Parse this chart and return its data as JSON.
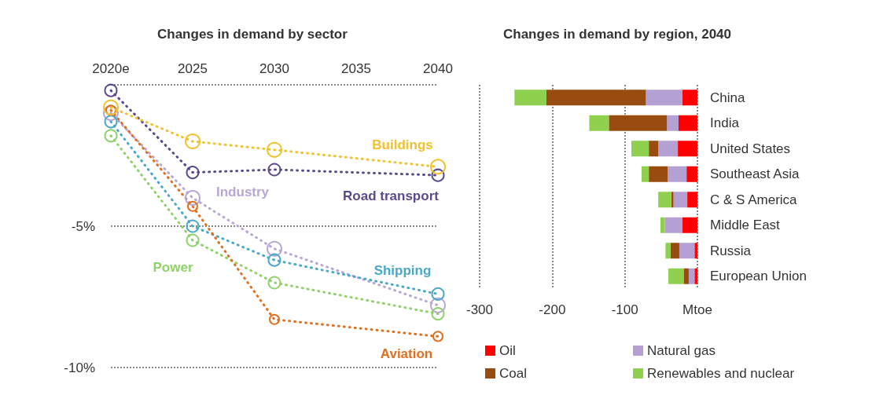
{
  "chart_data": [
    {
      "type": "line",
      "title": "Changes in demand by sector",
      "x": [
        2020,
        2025,
        2030,
        2040
      ],
      "xlim": [
        2020,
        2040
      ],
      "xticks": [
        {
          "value": 2020,
          "label": "2020e"
        },
        2025,
        2030,
        2035,
        2040
      ],
      "ylim": [
        -10,
        0
      ],
      "yticks": [
        {
          "value": 0,
          "label": null
        },
        {
          "value": -5,
          "label": "-5%"
        },
        {
          "value": -10,
          "label": "-10%"
        }
      ],
      "grid": "y",
      "legend": false,
      "marker": "circle",
      "line_style": "dotted",
      "series": [
        {
          "name": "Buildings",
          "color": "#f2c12e",
          "values": [
            -0.8,
            -2.0,
            -2.3,
            -2.9
          ]
        },
        {
          "name": "Road transport",
          "color": "#5b4a8b",
          "values": [
            -0.2,
            -3.1,
            -3.0,
            -3.2
          ]
        },
        {
          "name": "Industry",
          "color": "#b9a6d6",
          "values": [
            -1.0,
            -4.0,
            -5.8,
            -7.8
          ]
        },
        {
          "name": "Power",
          "color": "#8fd16a",
          "values": [
            -1.8,
            -5.5,
            -7.0,
            -8.1
          ]
        },
        {
          "name": "Shipping",
          "color": "#4aa8c8",
          "values": [
            -1.3,
            -5.0,
            -6.2,
            -7.4
          ]
        },
        {
          "name": "Aviation",
          "color": "#e07020",
          "values": [
            -0.9,
            -4.3,
            -8.3,
            -8.9
          ]
        }
      ]
    },
    {
      "type": "bar",
      "title": "Changes in demand by region, 2040",
      "orientation": "horizontal",
      "stacked": true,
      "categories": [
        "China",
        "India",
        "United States",
        "Southeast Asia",
        "C & S America",
        "Middle East",
        "Russia",
        "European Union"
      ],
      "xlim": [
        -300,
        0
      ],
      "xticks": [
        -300,
        -200,
        -100,
        {
          "value": 0,
          "label": "Mtoe"
        }
      ],
      "grid": "x",
      "legend": "bottom",
      "series": [
        {
          "name": "Oil",
          "color": "#ff0000",
          "values": [
            -21,
            -26,
            -27,
            -15,
            -14,
            -21,
            -4,
            -4
          ]
        },
        {
          "name": "Natural gas",
          "color": "#b4a0d2",
          "values": [
            -50,
            -16,
            -27,
            -26,
            -19,
            -24,
            -21,
            -8
          ]
        },
        {
          "name": "Coal",
          "color": "#994c0f",
          "values": [
            -137,
            -80,
            -13,
            -26,
            -3,
            0,
            -12,
            -7
          ]
        },
        {
          "name": "Renewables and nuclear",
          "color": "#8fd14f",
          "values": [
            -44,
            -27,
            -24,
            -10,
            -18,
            -6,
            -7,
            -21
          ]
        }
      ]
    }
  ]
}
